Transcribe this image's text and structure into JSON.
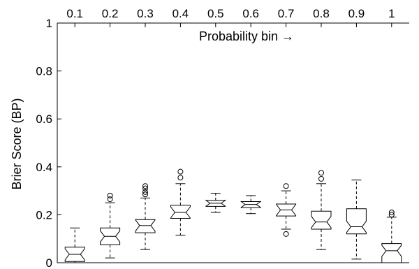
{
  "chart_data": {
    "type": "box",
    "title": "",
    "xlabel": "Probability bin →",
    "ylabel": "Brier Score (BP)",
    "xaxis_location": "top",
    "categories": [
      "0.1",
      "0.2",
      "0.3",
      "0.4",
      "0.5",
      "0.6",
      "0.7",
      "0.8",
      "0.9",
      "1"
    ],
    "ylim": [
      0,
      1
    ],
    "yticks": [
      "0",
      "0.2",
      "0.4",
      "0.6",
      "0.8",
      "1"
    ],
    "grid": false,
    "notched": true,
    "series": [
      {
        "bin": "0.1",
        "whisker_low": 0.0,
        "q1": 0.005,
        "median": 0.035,
        "q3": 0.065,
        "whisker_high": 0.145,
        "outliers": []
      },
      {
        "bin": "0.2",
        "whisker_low": 0.02,
        "q1": 0.075,
        "median": 0.11,
        "q3": 0.145,
        "whisker_high": 0.25,
        "outliers": [
          0.265,
          0.28
        ]
      },
      {
        "bin": "0.3",
        "whisker_low": 0.055,
        "q1": 0.125,
        "median": 0.155,
        "q3": 0.18,
        "whisker_high": 0.27,
        "outliers": [
          0.285,
          0.295,
          0.31,
          0.32
        ]
      },
      {
        "bin": "0.4",
        "whisker_low": 0.115,
        "q1": 0.185,
        "median": 0.21,
        "q3": 0.24,
        "whisker_high": 0.33,
        "outliers": [
          0.355,
          0.38
        ]
      },
      {
        "bin": "0.5",
        "whisker_low": 0.21,
        "q1": 0.235,
        "median": 0.248,
        "q3": 0.26,
        "whisker_high": 0.29,
        "outliers": []
      },
      {
        "bin": "0.6",
        "whisker_low": 0.205,
        "q1": 0.23,
        "median": 0.243,
        "q3": 0.255,
        "whisker_high": 0.28,
        "outliers": []
      },
      {
        "bin": "0.7",
        "whisker_low": 0.14,
        "q1": 0.195,
        "median": 0.22,
        "q3": 0.245,
        "whisker_high": 0.3,
        "outliers": [
          0.12,
          0.32
        ]
      },
      {
        "bin": "0.8",
        "whisker_low": 0.055,
        "q1": 0.14,
        "median": 0.17,
        "q3": 0.215,
        "whisker_high": 0.33,
        "outliers": [
          0.35,
          0.375
        ]
      },
      {
        "bin": "0.9",
        "whisker_low": 0.015,
        "q1": 0.12,
        "median": 0.15,
        "q3": 0.225,
        "whisker_high": 0.345,
        "outliers": []
      },
      {
        "bin": "1",
        "whisker_low": 0.0,
        "q1": 0.0,
        "median": 0.05,
        "q3": 0.08,
        "whisker_high": 0.19,
        "outliers": [
          0.2,
          0.21
        ]
      }
    ]
  }
}
